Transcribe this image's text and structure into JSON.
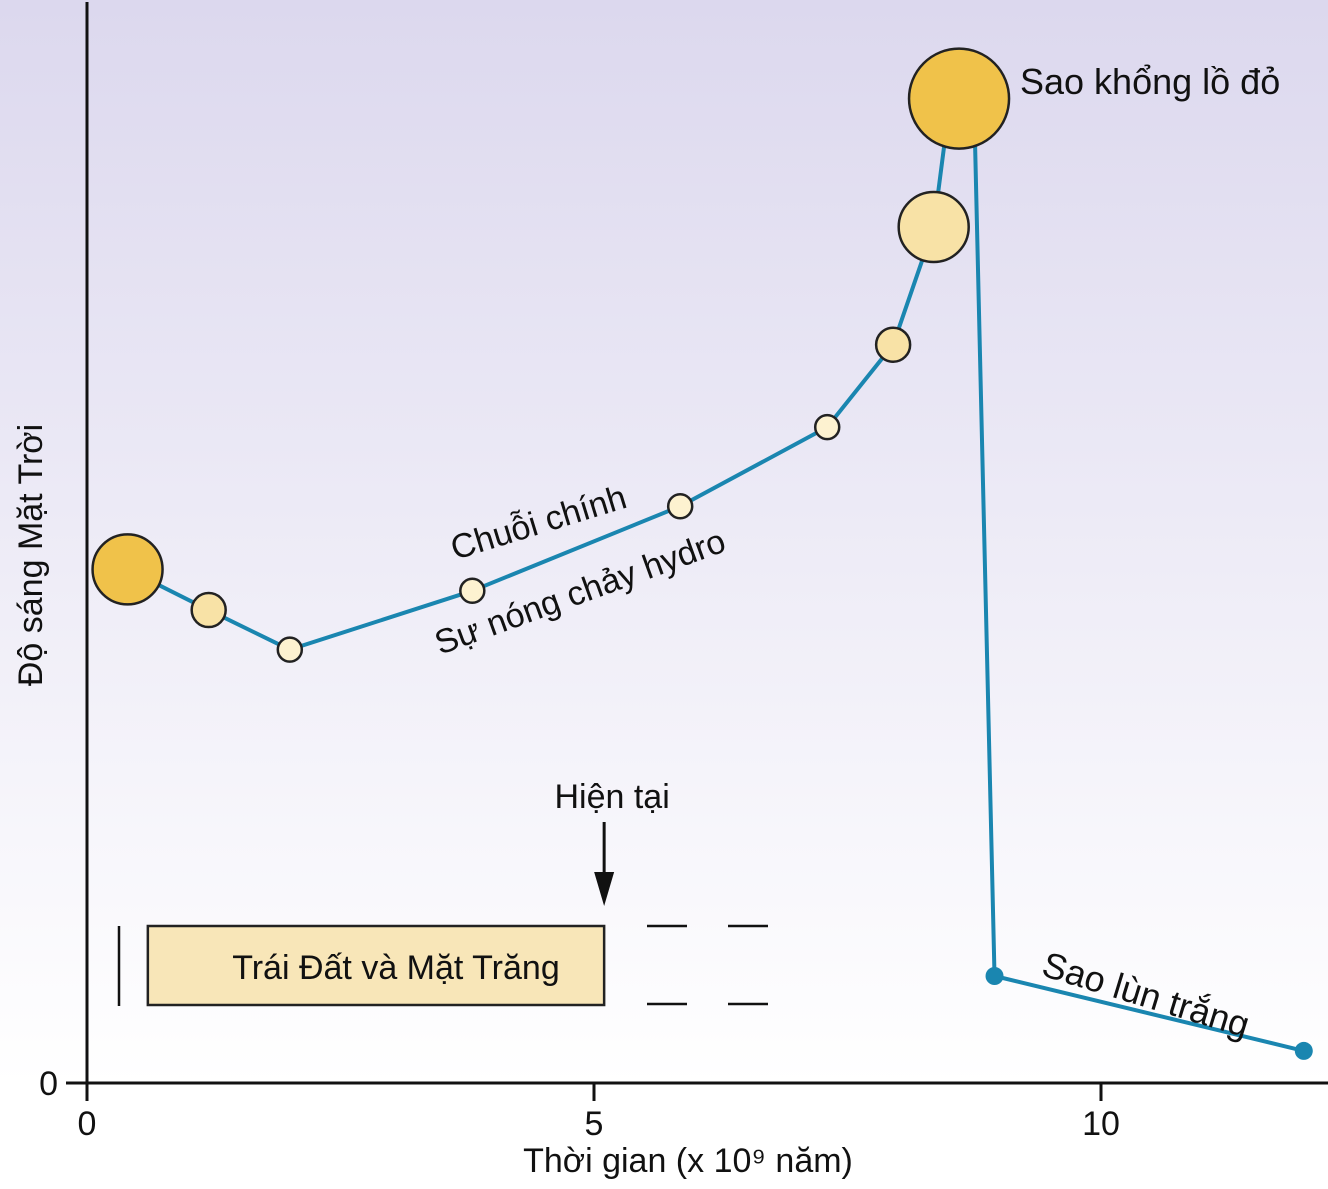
{
  "colors": {
    "background_top": "#dcd8ee",
    "background_bottom": "#ffffff",
    "curve": "#1a86b0",
    "sun_dark": "#f0c24a",
    "sun_light": "#f8e2a6",
    "sun_pale": "#fdf2d0",
    "box_fill": "#f8e6b8",
    "axis": "#111111"
  },
  "chart_data": {
    "type": "line",
    "title": "",
    "xlabel": "Thời gian (x 10⁹ năm)",
    "ylabel": "Độ sáng Mặt Trời",
    "xlim": [
      0,
      12
    ],
    "ylim": [
      0,
      10
    ],
    "x_ticks": [
      0,
      5,
      10
    ],
    "y_ticks": [
      0
    ],
    "grid": false,
    "series": [
      {
        "points": [
          [
            0.4,
            4.8
          ],
          [
            1.2,
            4.42
          ],
          [
            2.0,
            4.05
          ],
          [
            3.8,
            4.6
          ],
          [
            5.85,
            5.39
          ],
          [
            7.3,
            6.13
          ],
          [
            7.95,
            6.9
          ],
          [
            8.35,
            8.0
          ],
          [
            8.5,
            9.1
          ],
          [
            8.75,
            9.1
          ],
          [
            8.95,
            1.0
          ],
          [
            12.0,
            0.3
          ]
        ]
      }
    ],
    "sun_markers": [
      {
        "x": 0.4,
        "y": 4.8,
        "size": "large",
        "tone": "dark"
      },
      {
        "x": 1.2,
        "y": 4.42,
        "size": "medium",
        "tone": "light"
      },
      {
        "x": 2.0,
        "y": 4.05,
        "size": "small",
        "tone": "pale"
      },
      {
        "x": 3.8,
        "y": 4.6,
        "size": "small",
        "tone": "pale"
      },
      {
        "x": 5.85,
        "y": 5.39,
        "size": "small",
        "tone": "pale"
      },
      {
        "x": 7.3,
        "y": 6.13,
        "size": "small",
        "tone": "pale"
      },
      {
        "x": 7.95,
        "y": 6.9,
        "size": "medium",
        "tone": "light"
      },
      {
        "x": 8.35,
        "y": 8.0,
        "size": "large",
        "tone": "light"
      },
      {
        "x": 8.6,
        "y": 9.2,
        "size": "xlarge",
        "tone": "dark"
      }
    ],
    "white_dwarf_points": [
      {
        "x": 8.95,
        "y": 1.0
      },
      {
        "x": 12.0,
        "y": 0.3
      }
    ],
    "annotations": {
      "main_sequence": "Chuỗi chính",
      "hydrogen_fusion": "Sự nóng chảy hydro",
      "red_giant": "Sao khổng lồ đỏ",
      "white_dwarf": "Sao lùn trắng",
      "present": "Hiện tại",
      "earth_moon": "Trái Đất và Mặt Trăng"
    },
    "present_x": 5.1,
    "earth_moon_span": [
      0.6,
      5.1
    ]
  }
}
